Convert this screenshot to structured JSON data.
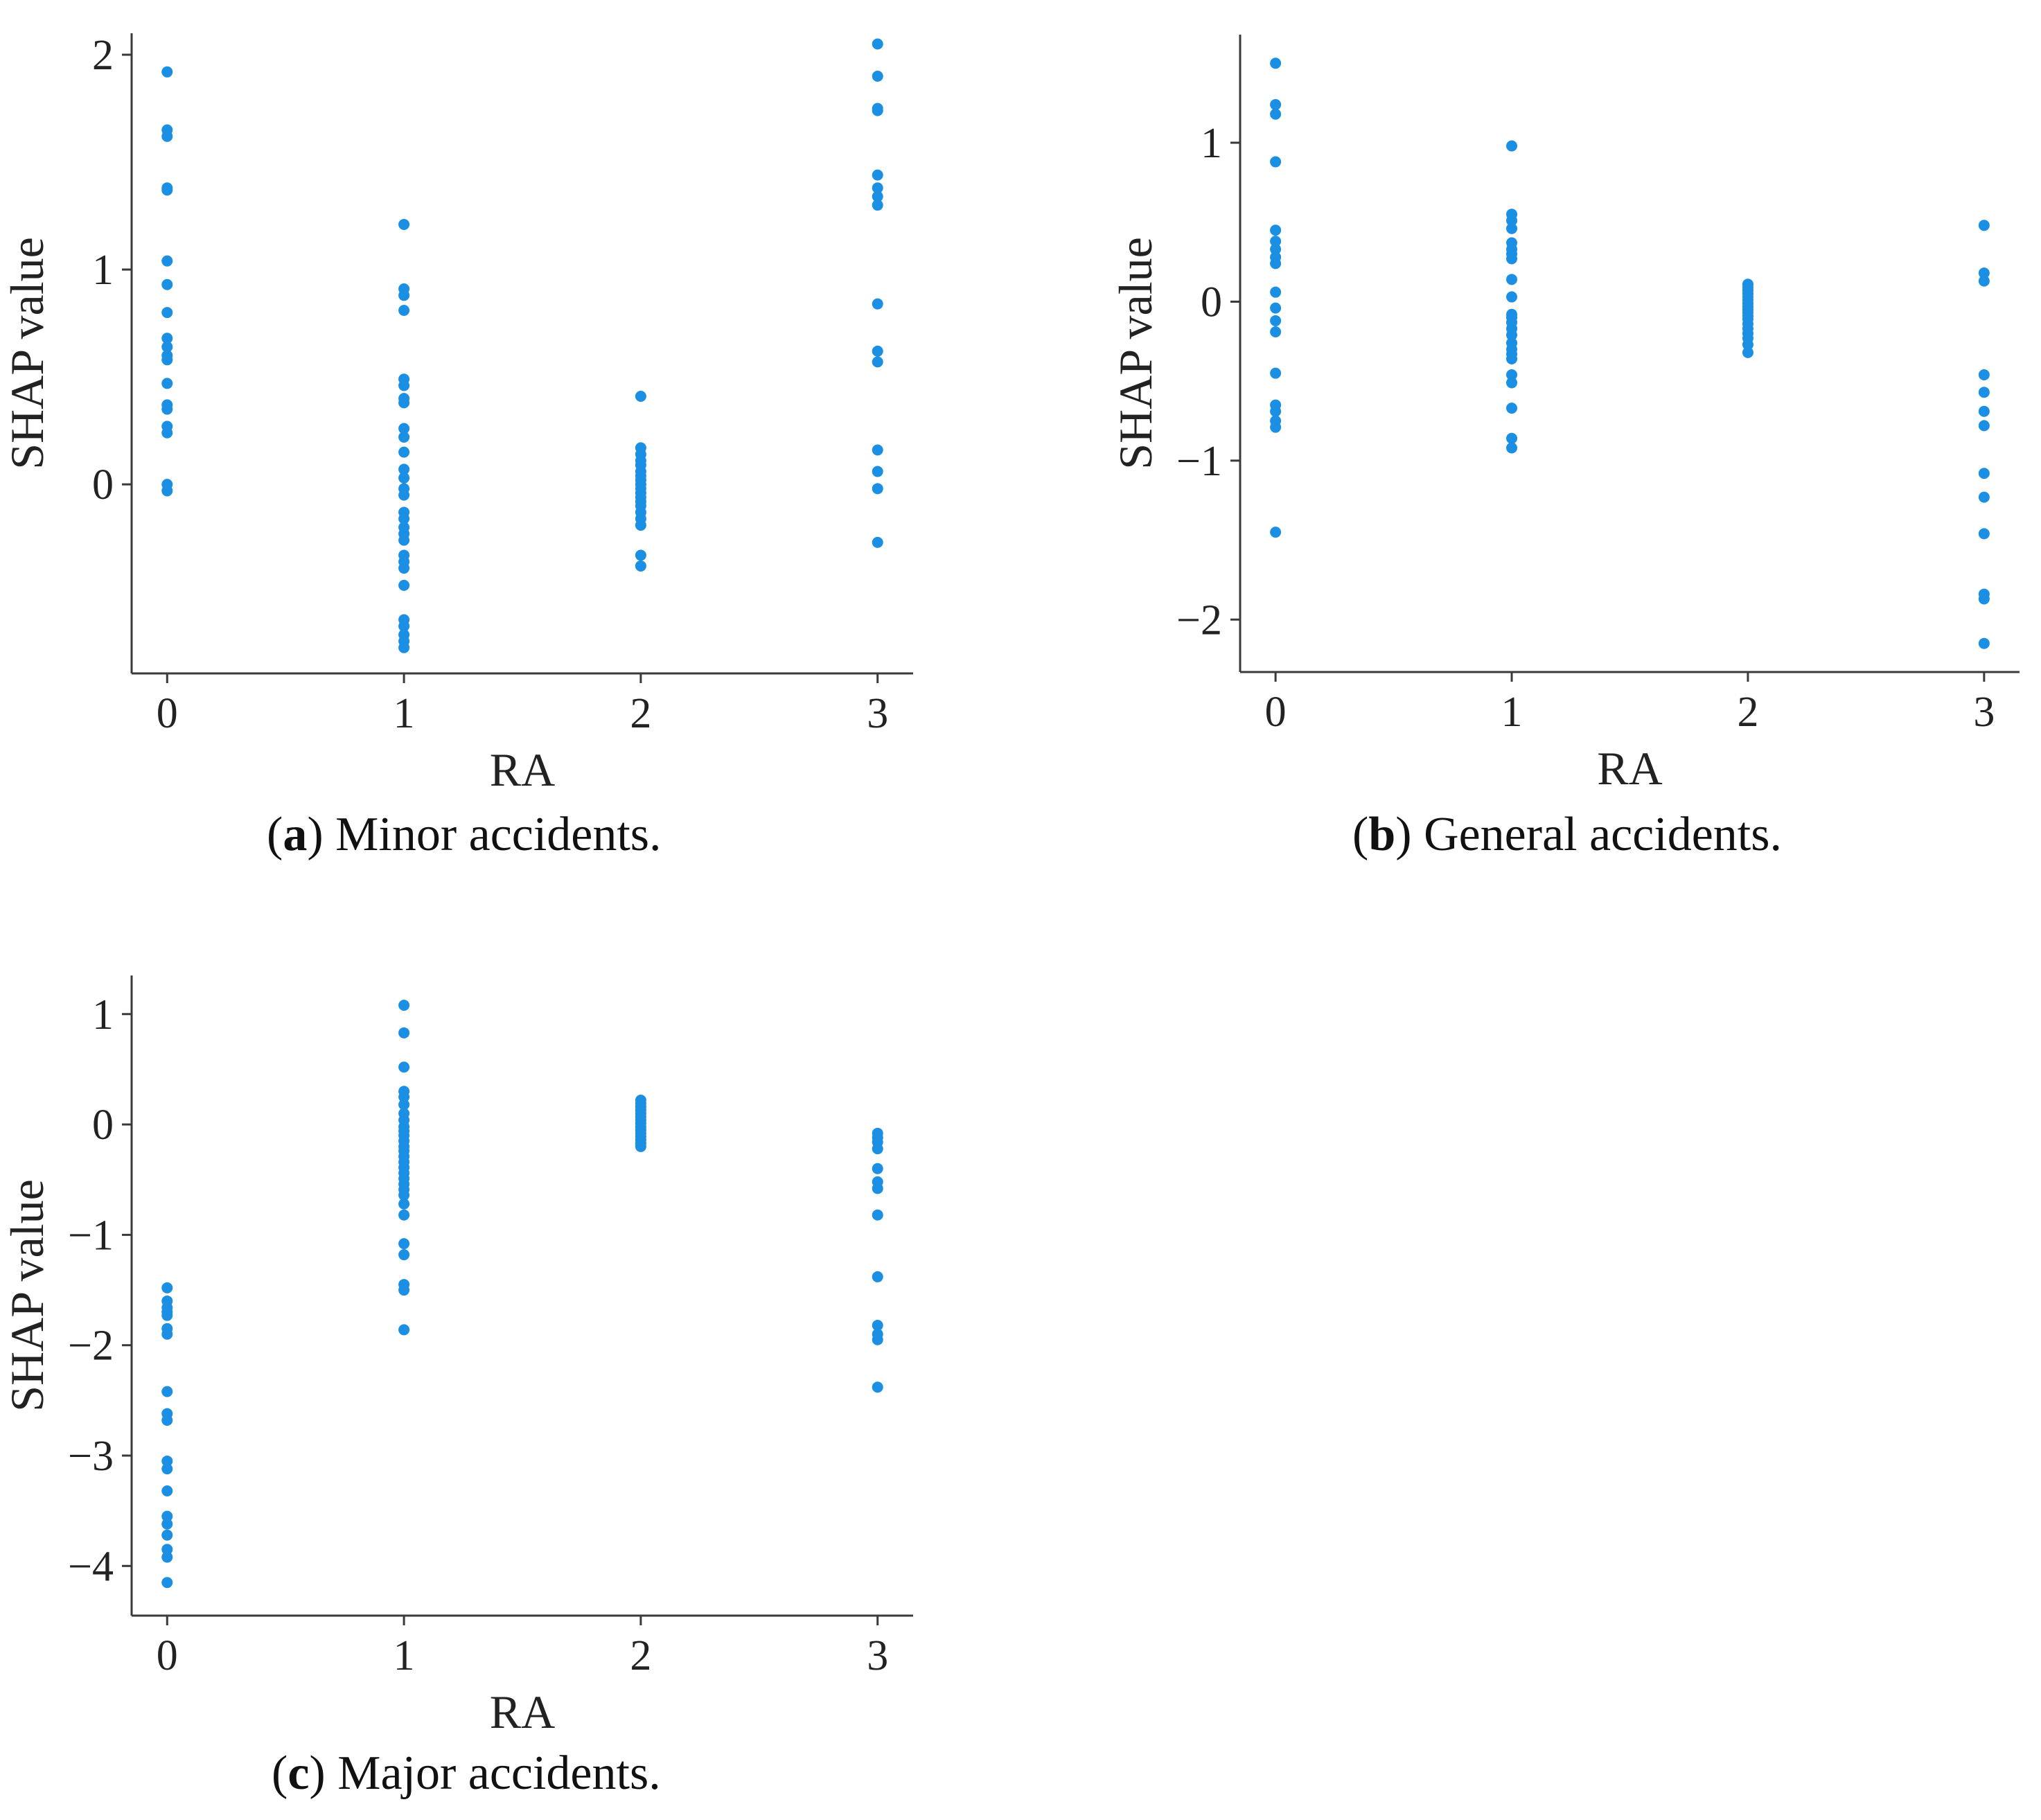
{
  "point_color": "#1a8fe3",
  "chart_data": [
    {
      "id": "a",
      "type": "scatter",
      "caption_letter": "a",
      "caption_text": "Minor accidents.",
      "xlabel": "RA",
      "ylabel": "SHAP value",
      "xlim": [
        -0.15,
        3.15
      ],
      "ylim": [
        -0.88,
        2.1
      ],
      "xticks": [
        0,
        1,
        2,
        3
      ],
      "xtick_labels": [
        "0",
        "1",
        "2",
        "3"
      ],
      "yticks": [
        0,
        1,
        2
      ],
      "ytick_labels": [
        "0",
        "1",
        "2"
      ],
      "series": [
        {
          "x": 0,
          "values": [
            1.92,
            1.65,
            1.62,
            1.38,
            1.37,
            1.04,
            0.93,
            0.8,
            0.68,
            0.64,
            0.6,
            0.58,
            0.47,
            0.37,
            0.35,
            0.27,
            0.24,
            0.0,
            -0.03
          ]
        },
        {
          "x": 1,
          "values": [
            1.21,
            0.91,
            0.88,
            0.81,
            0.49,
            0.46,
            0.4,
            0.38,
            0.26,
            0.22,
            0.15,
            0.07,
            0.03,
            -0.02,
            -0.05,
            -0.13,
            -0.16,
            -0.2,
            -0.23,
            -0.26,
            -0.33,
            -0.36,
            -0.39,
            -0.47,
            -0.63,
            -0.66,
            -0.7,
            -0.73,
            -0.76
          ]
        },
        {
          "x": 2,
          "values": [
            0.41,
            0.17,
            0.14,
            0.11,
            0.09,
            0.06,
            0.04,
            0.02,
            0.0,
            -0.02,
            -0.04,
            -0.06,
            -0.08,
            -0.1,
            -0.13,
            -0.16,
            -0.19,
            -0.33,
            -0.38
          ]
        },
        {
          "x": 3,
          "values": [
            2.05,
            1.9,
            1.75,
            1.74,
            1.44,
            1.38,
            1.34,
            1.3,
            0.84,
            0.62,
            0.57,
            0.16,
            0.06,
            -0.02,
            -0.27
          ]
        }
      ]
    },
    {
      "id": "b",
      "type": "scatter",
      "caption_letter": "b",
      "caption_text": "General accidents.",
      "xlabel": "RA",
      "ylabel": "SHAP value",
      "xlim": [
        -0.15,
        3.15
      ],
      "ylim": [
        -2.33,
        1.68
      ],
      "xticks": [
        0,
        1,
        2,
        3
      ],
      "xtick_labels": [
        "0",
        "1",
        "2",
        "3"
      ],
      "yticks": [
        -2,
        -1,
        0,
        1
      ],
      "ytick_labels": [
        "−2",
        "−1",
        "0",
        "1"
      ],
      "series": [
        {
          "x": 0,
          "values": [
            1.5,
            1.24,
            1.18,
            0.88,
            0.45,
            0.38,
            0.33,
            0.28,
            0.24,
            0.06,
            -0.04,
            -0.12,
            -0.19,
            -0.45,
            -0.65,
            -0.69,
            -0.75,
            -0.79,
            -1.45
          ]
        },
        {
          "x": 1,
          "values": [
            0.98,
            0.55,
            0.51,
            0.46,
            0.37,
            0.33,
            0.3,
            0.27,
            0.14,
            0.03,
            -0.08,
            -0.1,
            -0.13,
            -0.17,
            -0.21,
            -0.26,
            -0.3,
            -0.33,
            -0.36,
            -0.46,
            -0.51,
            -0.67,
            -0.86,
            -0.92
          ]
        },
        {
          "x": 2,
          "values": [
            0.11,
            0.09,
            0.07,
            0.05,
            0.03,
            0.01,
            -0.01,
            -0.03,
            -0.05,
            -0.07,
            -0.09,
            -0.11,
            -0.14,
            -0.17,
            -0.2,
            -0.23,
            -0.27,
            -0.32
          ]
        },
        {
          "x": 3,
          "values": [
            0.48,
            0.18,
            0.13,
            -0.46,
            -0.57,
            -0.69,
            -0.78,
            -1.08,
            -1.23,
            -1.46,
            -1.84,
            -1.87,
            -2.15
          ]
        }
      ]
    },
    {
      "id": "c",
      "type": "scatter",
      "caption_letter": "c",
      "caption_text": "Major accidents.",
      "xlabel": "RA",
      "ylabel": "SHAP value",
      "xlim": [
        -0.15,
        3.15
      ],
      "ylim": [
        -4.45,
        1.35
      ],
      "xticks": [
        0,
        1,
        2,
        3
      ],
      "xtick_labels": [
        "0",
        "1",
        "2",
        "3"
      ],
      "yticks": [
        -4,
        -3,
        -2,
        -1,
        0,
        1
      ],
      "ytick_labels": [
        "−4",
        "−3",
        "−2",
        "−1",
        "0",
        "1"
      ],
      "series": [
        {
          "x": 0,
          "values": [
            -1.48,
            -1.6,
            -1.66,
            -1.7,
            -1.73,
            -1.85,
            -1.9,
            -2.42,
            -2.62,
            -2.68,
            -3.05,
            -3.12,
            -3.32,
            -3.55,
            -3.62,
            -3.72,
            -3.85,
            -3.92,
            -4.15
          ]
        },
        {
          "x": 1,
          "values": [
            1.08,
            0.83,
            0.52,
            0.3,
            0.25,
            0.18,
            0.1,
            0.04,
            -0.02,
            -0.06,
            -0.1,
            -0.15,
            -0.2,
            -0.24,
            -0.29,
            -0.34,
            -0.39,
            -0.44,
            -0.49,
            -0.54,
            -0.59,
            -0.64,
            -0.72,
            -0.82,
            -1.08,
            -1.18,
            -1.45,
            -1.5,
            -1.86
          ]
        },
        {
          "x": 2,
          "values": [
            0.22,
            0.19,
            0.16,
            0.13,
            0.1,
            0.07,
            0.04,
            0.01,
            -0.02,
            -0.05,
            -0.08,
            -0.11,
            -0.14,
            -0.17,
            -0.2
          ]
        },
        {
          "x": 3,
          "values": [
            -0.08,
            -0.12,
            -0.16,
            -0.22,
            -0.4,
            -0.52,
            -0.58,
            -0.82,
            -1.38,
            -1.82,
            -1.9,
            -1.95,
            -2.38
          ]
        }
      ]
    }
  ]
}
